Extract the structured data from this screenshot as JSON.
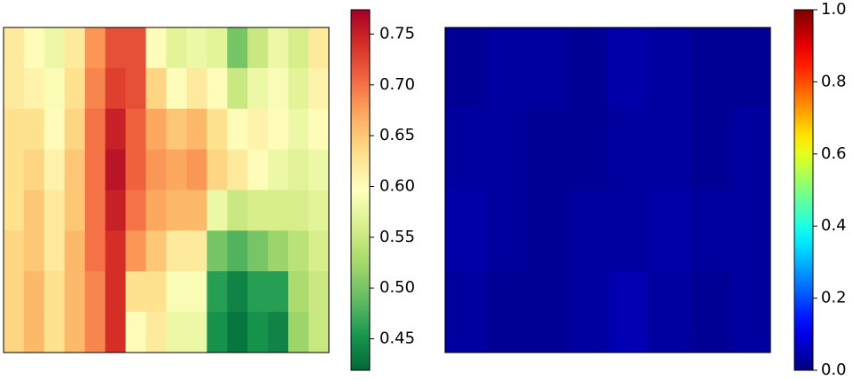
{
  "chart_data": [
    {
      "type": "heatmap",
      "cmap": "RdYlGn_r",
      "clim": [
        0.419,
        0.774
      ],
      "cticks": [
        0.45,
        {
          "value": 0.5,
          "label": "0.50"
        },
        0.55,
        {
          "value": 0.6,
          "label": "0.60"
        },
        0.65,
        {
          "value": 0.7,
          "label": "0.70"
        },
        0.75
      ],
      "values": [
        [
          0.62,
          0.6,
          0.58,
          0.62,
          0.68,
          0.72,
          0.72,
          0.6,
          0.57,
          0.58,
          0.57,
          0.5,
          0.55,
          0.58,
          0.56,
          0.62
        ],
        [
          0.62,
          0.61,
          0.59,
          0.63,
          0.69,
          0.73,
          0.72,
          0.64,
          0.6,
          0.62,
          0.6,
          0.55,
          0.58,
          0.59,
          0.57,
          0.61
        ],
        [
          0.63,
          0.63,
          0.6,
          0.64,
          0.7,
          0.75,
          0.71,
          0.67,
          0.65,
          0.66,
          0.63,
          0.6,
          0.61,
          0.6,
          0.58,
          0.6
        ],
        [
          0.63,
          0.64,
          0.61,
          0.65,
          0.7,
          0.76,
          0.71,
          0.68,
          0.67,
          0.68,
          0.64,
          0.62,
          0.6,
          0.58,
          0.57,
          0.58
        ],
        [
          0.63,
          0.65,
          0.62,
          0.65,
          0.7,
          0.75,
          0.7,
          0.67,
          0.66,
          0.66,
          0.58,
          0.55,
          0.56,
          0.56,
          0.56,
          0.57
        ],
        [
          0.64,
          0.65,
          0.62,
          0.66,
          0.7,
          0.74,
          0.68,
          0.65,
          0.62,
          0.62,
          0.5,
          0.48,
          0.5,
          0.52,
          0.54,
          0.56
        ],
        [
          0.64,
          0.66,
          0.63,
          0.66,
          0.69,
          0.74,
          0.63,
          0.63,
          0.59,
          0.59,
          0.46,
          0.44,
          0.46,
          0.46,
          0.53,
          0.55
        ],
        [
          0.64,
          0.66,
          0.63,
          0.66,
          0.69,
          0.74,
          0.6,
          0.62,
          0.58,
          0.58,
          0.45,
          0.43,
          0.45,
          0.44,
          0.52,
          0.55
        ]
      ]
    },
    {
      "type": "heatmap",
      "cmap": "jet",
      "clim": [
        0,
        1
      ],
      "cticks": [
        {
          "value": 0,
          "label": "0.0"
        },
        0.2,
        0.4,
        0.6,
        0.8,
        {
          "value": 1,
          "label": "1.0"
        }
      ],
      "values": [
        [
          0.02,
          0.03,
          0.03,
          0.02,
          0.04,
          0.03,
          0.02,
          0.02
        ],
        [
          0.03,
          0.03,
          0.02,
          0.02,
          0.03,
          0.03,
          0.02,
          0.03
        ],
        [
          0.04,
          0.03,
          0.02,
          0.03,
          0.03,
          0.04,
          0.03,
          0.03
        ],
        [
          0.03,
          0.02,
          0.02,
          0.03,
          0.05,
          0.03,
          0.02,
          0.03
        ]
      ]
    }
  ]
}
